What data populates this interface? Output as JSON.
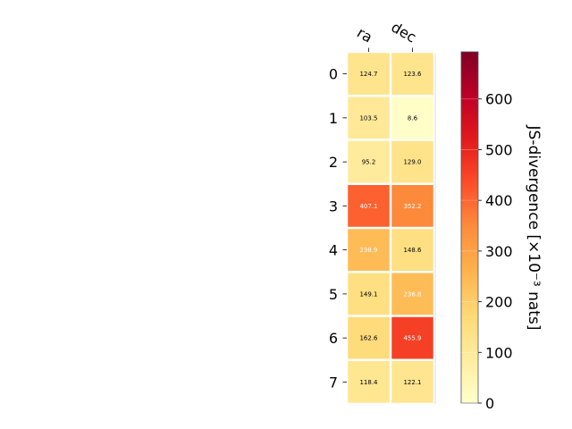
{
  "chart_data": {
    "type": "heatmap",
    "title": "",
    "columns": [
      "ra",
      "dec"
    ],
    "rows": [
      "0",
      "1",
      "2",
      "3",
      "4",
      "5",
      "6",
      "7"
    ],
    "values": [
      [
        124.7,
        123.6
      ],
      [
        103.5,
        8.6
      ],
      [
        95.2,
        129.0
      ],
      [
        407.1,
        352.2
      ],
      [
        238.9,
        148.6
      ],
      [
        149.1,
        236.8
      ],
      [
        162.6,
        455.9
      ],
      [
        118.4,
        122.1
      ]
    ],
    "cell_labels": [
      [
        "124.7",
        "123.6"
      ],
      [
        "103.5",
        "8.6"
      ],
      [
        "95.2",
        "129.0"
      ],
      [
        "407.1",
        "352.2"
      ],
      [
        "238.9",
        "148.6"
      ],
      [
        "149.1",
        "236.8"
      ],
      [
        "162.6",
        "455.9"
      ],
      [
        "118.4",
        "122.1"
      ]
    ],
    "colormap": "YlOrRd",
    "colorbar": {
      "label": "JS-divergence [×10⁻³ nats]",
      "range": [
        0,
        693
      ],
      "ticks": [
        0,
        100,
        200,
        300,
        400,
        500,
        600
      ],
      "tick_labels": [
        "0",
        "100",
        "200",
        "300",
        "400",
        "500",
        "600"
      ]
    }
  }
}
